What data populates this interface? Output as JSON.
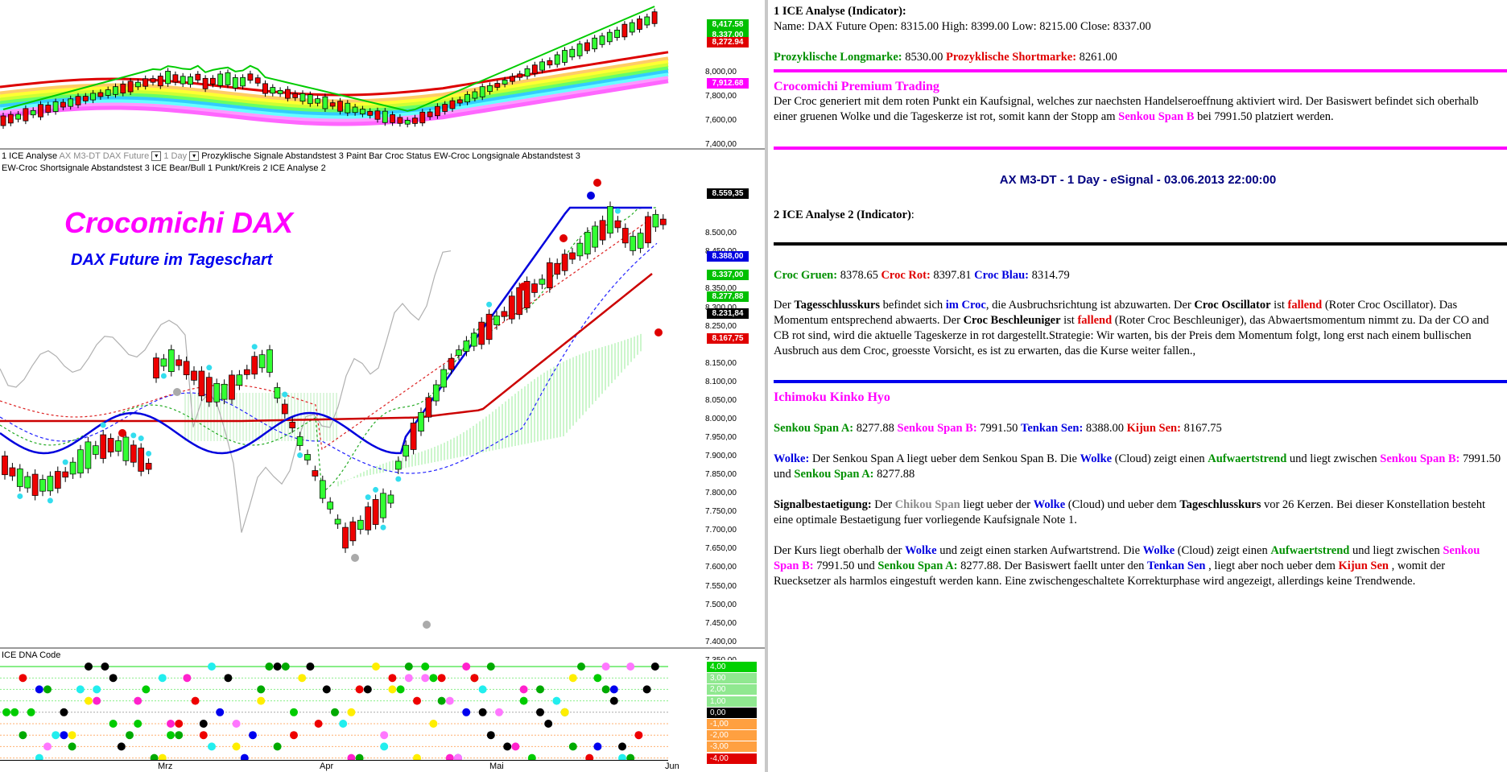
{
  "chart_panel": {
    "legend_line1": [
      {
        "text": "1 ICE Analyse",
        "dim": false
      },
      {
        "text": "AX M3-DT",
        "dim": true
      },
      {
        "text": "DAX Future",
        "dim": true
      },
      {
        "text": "1 Day",
        "dim": true
      },
      {
        "text": "Prozyklische Signale Abstandstest 3",
        "dim": false
      },
      {
        "text": "Paint Bar Croc Status",
        "dim": false
      },
      {
        "text": "EW-Croc Longsignale Abstandstest 3",
        "dim": false
      }
    ],
    "legend_line2": "EW-Croc Shortsignale Abstandstest 3  ICE Bear/Bull 1 Punkt/Kreis  2 ICE Analyse 2",
    "dna_label": "ICE DNA Code",
    "title": "Crocomichi DAX",
    "subtitle": "DAX Future im Tageschart",
    "top_axis": [
      "8,000,00",
      "7,800,00",
      "7,600,00",
      "7,400,00"
    ],
    "top_tags": [
      {
        "text": "8,417.58",
        "color": "#00c000"
      },
      {
        "text": "8,337.00",
        "color": "#00c000"
      },
      {
        "text": "8,272.94",
        "color": "#e00000"
      },
      {
        "text": "7,912.68",
        "color": "#ff00ff"
      }
    ],
    "main_axis": [
      "8.500,00",
      "8.450,00",
      "8.350,00",
      "8.300,00",
      "8.250,00",
      "8.150,00",
      "8.100,00",
      "8.050,00",
      "8.000,00",
      "7.950,00",
      "7.900,00",
      "7.850,00",
      "7.800,00",
      "7.750,00",
      "7.700,00",
      "7.650,00",
      "7.600,00",
      "7.550,00",
      "7.500,00",
      "7.450,00",
      "7.400,00",
      "7.350,00"
    ],
    "main_tags": [
      {
        "text": "8.559,35",
        "color": "#000000"
      },
      {
        "text": "8.388,00",
        "color": "#0000e0"
      },
      {
        "text": "8.337,00",
        "color": "#00c000"
      },
      {
        "text": "8.277,88",
        "color": "#00c000"
      },
      {
        "text": "8.231,84",
        "color": "#000000"
      },
      {
        "text": "8.167,75",
        "color": "#e00000"
      }
    ],
    "dna_axis": [
      {
        "text": "4,00",
        "color": "#00d000"
      },
      {
        "text": "3,00",
        "color": "#90e890"
      },
      {
        "text": "2,00",
        "color": "#90e890"
      },
      {
        "text": "1,00",
        "color": "#90e890"
      },
      {
        "text": "0,00",
        "color": "#000000"
      },
      {
        "text": "-1,00",
        "color": "#ffa040"
      },
      {
        "text": "-2,00",
        "color": "#ffa040"
      },
      {
        "text": "-3,00",
        "color": "#ffa040"
      },
      {
        "text": "-4,00",
        "color": "#e00000"
      }
    ],
    "x_labels": [
      "Mrz",
      "Apr",
      "Mai",
      "Jun"
    ]
  },
  "analysis": {
    "sec1_title": "1 ICE Analyse (Indicator)",
    "sec1_line": "Name: DAX Future Open: 8315.00 High: 8399.00 Low: 8215.00 Close: 8337.00",
    "long_label": "Prozyklische Longmarke:",
    "long_value": "8530.00",
    "short_label": "Prozyklische Shortmarke:",
    "short_value": "8261.00",
    "premium_title": "Crocomichi Premium Trading",
    "premium_text_a": "Der Croc generiert mit dem roten Punkt ein Kaufsignal, welches zur naechsten Handelseroeffnung aktiviert wird. Der Basiswert befindet sich oberhalb einer gruenen Wolke und die Tageskerze ist rot, somit kann der Stopp am",
    "premium_span": "Senkou Span B",
    "premium_text_b": "bei 7991.50 platziert werden.",
    "center_title": "AX M3-DT - 1 Day - eSignal - 03.06.2013 22:00:00",
    "sec2_title": "2 ICE Analyse 2 (Indicator)",
    "croc_gruen_label": "Croc Gruen:",
    "croc_gruen": "8378.65",
    "croc_rot_label": "Croc Rot:",
    "croc_rot": "8397.81",
    "croc_blau_label": "Croc Blau:",
    "croc_blau": "8314.79",
    "para1": [
      {
        "t": "Der ",
        "c": ""
      },
      {
        "t": "Tagesschlusskurs",
        "c": "b"
      },
      {
        "t": " befindet sich ",
        "c": ""
      },
      {
        "t": "im Croc",
        "c": "blue"
      },
      {
        "t": ", die Ausbruchsrichtung ist abzuwarten. Der ",
        "c": ""
      },
      {
        "t": "Croc Oscillator",
        "c": "b"
      },
      {
        "t": " ist ",
        "c": ""
      },
      {
        "t": "fallend",
        "c": "red"
      },
      {
        "t": " (Roter Croc Oscillator). Das Momentum entsprechend abwaerts. Der ",
        "c": ""
      },
      {
        "t": "Croc Beschleuniger",
        "c": "b"
      },
      {
        "t": " ist ",
        "c": ""
      },
      {
        "t": "fallend",
        "c": "red"
      },
      {
        "t": " (Roter Croc Beschleuniger), das Abwaertsmomentum nimmt zu. Da der CO and CB rot sind, wird die aktuelle Tageskerze in rot dargestellt.Strategie: Wir warten, bis der Preis dem Momentum folgt, long erst nach einem bullischen Ausbruch aus dem Croc, groesste Vorsicht, es ist zu erwarten, das die Kurse weiter fallen.,",
        "c": ""
      }
    ],
    "ichimoku_title": "Ichimoku Kinko Hyo",
    "ssa_label": "Senkou Span A:",
    "ssa": "8277.88",
    "ssb_label": "Senkou Span B:",
    "ssb": "7991.50",
    "tenkan_label": "Tenkan Sen:",
    "tenkan": "8388.00",
    "kijun_label": "Kijun Sen:",
    "kijun": "8167.75",
    "para2": [
      {
        "t": "Wolke:",
        "c": "blue"
      },
      {
        "t": " Der Senkou Span A liegt ueber dem Senkou Span B. Die ",
        "c": ""
      },
      {
        "t": "Wolke",
        "c": "blue"
      },
      {
        "t": " (Cloud) zeigt einen ",
        "c": ""
      },
      {
        "t": "Aufwaertstrend",
        "c": "green"
      },
      {
        "t": " und liegt zwischen ",
        "c": ""
      },
      {
        "t": "Senkou Span B:",
        "c": "magenta"
      },
      {
        "t": " 7991.50 und ",
        "c": ""
      },
      {
        "t": "Senkou Span A:",
        "c": "green"
      },
      {
        "t": " 8277.88",
        "c": ""
      }
    ],
    "para3": [
      {
        "t": "Signalbestaetigung:",
        "c": "b"
      },
      {
        "t": " Der ",
        "c": ""
      },
      {
        "t": "Chikou Span",
        "c": "gray"
      },
      {
        "t": " liegt ueber der ",
        "c": ""
      },
      {
        "t": "Wolke",
        "c": "blue"
      },
      {
        "t": " (Cloud) und ueber dem ",
        "c": ""
      },
      {
        "t": "Tageschlusskurs",
        "c": "b"
      },
      {
        "t": " vor 26 Kerzen. Bei dieser Konstellation besteht eine optimale Bestaetigung fuer vorliegende Kaufsignale Note 1.",
        "c": ""
      }
    ],
    "para4": [
      {
        "t": "Der Kurs liegt oberhalb der ",
        "c": ""
      },
      {
        "t": "Wolke",
        "c": "blue"
      },
      {
        "t": " und zeigt einen starken Aufwartstrend. Die ",
        "c": ""
      },
      {
        "t": "Wolke",
        "c": "blue"
      },
      {
        "t": " (Cloud) zeigt einen ",
        "c": ""
      },
      {
        "t": "Aufwaertstrend",
        "c": "green"
      },
      {
        "t": " und liegt zwischen ",
        "c": ""
      },
      {
        "t": "Senkou Span B:",
        "c": "magenta"
      },
      {
        "t": " 7991.50 und ",
        "c": ""
      },
      {
        "t": "Senkou Span A:",
        "c": "green"
      },
      {
        "t": " 8277.88. Der Basiswert faellt unter den ",
        "c": ""
      },
      {
        "t": "Tenkan Sen",
        "c": "blue"
      },
      {
        "t": " , liegt aber noch ueber dem ",
        "c": ""
      },
      {
        "t": "Kijun Sen",
        "c": "red"
      },
      {
        "t": " , womit der Ruecksetzer als harmlos eingestuft werden kann. Eine zwischengeschaltete Korrekturphase wird angezeigt, allerdings keine Trendwende.",
        "c": ""
      }
    ]
  }
}
